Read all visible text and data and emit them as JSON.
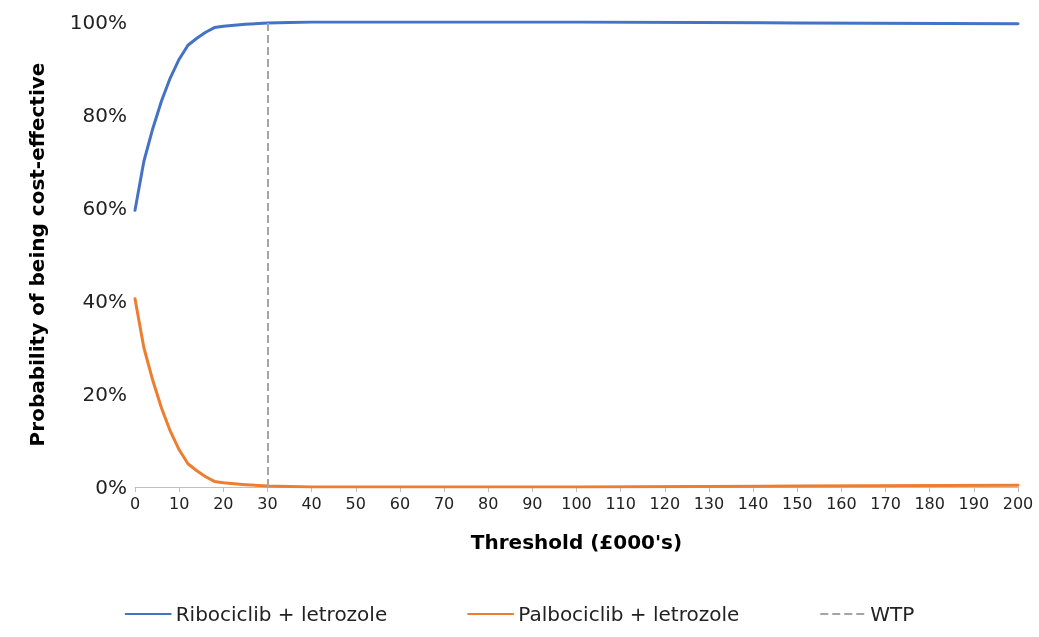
{
  "chart_data": {
    "type": "line",
    "xlabel": "Threshold (£000's)",
    "ylabel": "Probability of being cost-effective",
    "x": [
      0,
      2,
      4,
      6,
      8,
      10,
      12,
      14,
      16,
      18,
      20,
      25,
      30,
      40,
      60,
      100,
      150,
      200
    ],
    "series": [
      {
        "name": "Ribociclib + letrozole",
        "color": "#4472c4",
        "values": [
          59.5,
          70,
          77,
          83,
          88,
          92,
          95,
          96.5,
          97.8,
          98.8,
          99.1,
          99.5,
          99.8,
          100,
          100,
          100,
          99.8,
          99.6
        ]
      },
      {
        "name": "Palbociclib + letrozole",
        "color": "#ed7d31",
        "values": [
          40.5,
          30,
          23,
          17,
          12,
          8,
          5,
          3.5,
          2.2,
          1.2,
          0.9,
          0.5,
          0.2,
          0,
          0,
          0,
          0.2,
          0.4
        ]
      }
    ],
    "ref_lines": [
      {
        "axis": "x",
        "value": 30,
        "label": "WTP",
        "color": "#a5a5a5",
        "line_style": "dashed"
      }
    ],
    "xlim": [
      0,
      200
    ],
    "xticks": [
      0,
      10,
      20,
      30,
      40,
      50,
      60,
      70,
      80,
      90,
      100,
      110,
      120,
      130,
      140,
      150,
      160,
      170,
      180,
      190,
      200
    ],
    "ylim": [
      0,
      100
    ],
    "yticks": [
      {
        "value": 0,
        "label": "0%"
      },
      {
        "value": 20,
        "label": "20%"
      },
      {
        "value": 40,
        "label": "40%"
      },
      {
        "value": 60,
        "label": "60%"
      },
      {
        "value": 80,
        "label": "80%"
      },
      {
        "value": 100,
        "label": "100%"
      }
    ],
    "grid": false,
    "legend": "bottom",
    "marker": "none",
    "line_style": "solid"
  }
}
